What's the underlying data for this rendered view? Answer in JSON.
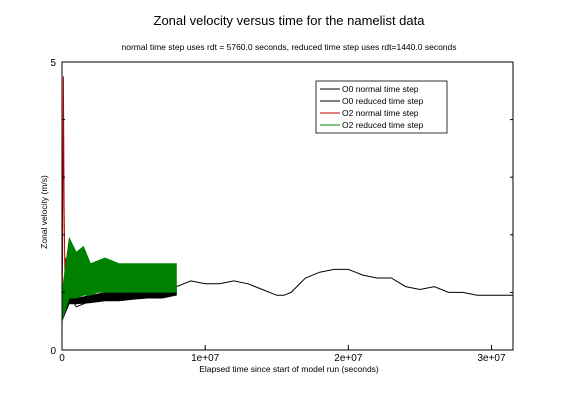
{
  "chart_data": {
    "type": "line",
    "title": "Zonal velocity versus time for the namelist data",
    "subtitle": "normal time step uses rdt = 5760.0 seconds, reduced time step uses rdt=1440.0 seconds",
    "xlabel": "Elapsed time since start of model run (seconds)",
    "ylabel": "Zonal velocity  (m/s)",
    "xlim": [
      0,
      31500000
    ],
    "ylim": [
      0,
      5
    ],
    "x_ticks": [
      0,
      10000000,
      20000000,
      30000000
    ],
    "x_tick_labels": [
      "0",
      "1e+07",
      "2e+07",
      "3e+07"
    ],
    "y_ticks": [
      0,
      5
    ],
    "y_tick_labels": [
      "0",
      "5"
    ],
    "grid": false,
    "legend_position": "top-right",
    "series": [
      {
        "name": "O0 normal time step",
        "color": "#000000",
        "band": false,
        "x": [
          0,
          500000,
          1000000,
          1500000,
          2000000,
          2500000,
          3000000,
          3500000,
          4000000,
          5000000,
          6000000,
          7000000,
          8000000,
          9000000,
          10000000,
          11000000,
          12000000,
          13000000,
          14000000,
          15000000,
          15500000,
          16000000,
          17000000,
          18000000,
          19000000,
          20000000,
          20500000,
          21000000,
          22000000,
          23000000,
          24000000,
          25000000,
          26000000,
          27000000,
          28000000,
          29000000,
          30000000,
          31000000,
          31500000
        ],
        "y": [
          0.65,
          0.95,
          0.75,
          0.8,
          0.85,
          0.9,
          0.95,
          0.95,
          0.98,
          1.0,
          1.0,
          1.05,
          1.1,
          1.2,
          1.15,
          1.15,
          1.2,
          1.15,
          1.05,
          0.95,
          0.95,
          1.0,
          1.25,
          1.35,
          1.4,
          1.4,
          1.35,
          1.3,
          1.25,
          1.25,
          1.1,
          1.05,
          1.1,
          1.0,
          1.0,
          0.95,
          0.95,
          0.95,
          0.95
        ]
      },
      {
        "name": "O0 reduced time step",
        "color": "#000000",
        "band": true,
        "x": [
          0,
          500000,
          1000000,
          2000000,
          3000000,
          4000000,
          5000000,
          6000000,
          7000000,
          8000000
        ],
        "y_low": [
          0.5,
          0.8,
          0.8,
          0.82,
          0.85,
          0.85,
          0.88,
          0.9,
          0.9,
          0.95
        ],
        "y_high": [
          0.7,
          1.0,
          0.9,
          0.95,
          1.0,
          1.0,
          1.0,
          1.0,
          1.05,
          1.05
        ]
      },
      {
        "name": "O2 normal time step",
        "color": "#c00000",
        "band": false,
        "x": [
          0,
          50000,
          100000,
          150000,
          200000,
          250000,
          300000,
          400000,
          500000
        ],
        "y": [
          0.3,
          2.0,
          4.75,
          2.5,
          1.3,
          1.6,
          1.0,
          1.3,
          1.05
        ]
      },
      {
        "name": "O2 reduced time step",
        "color": "#008000",
        "band": true,
        "x": [
          0,
          500000,
          1000000,
          1500000,
          2000000,
          2500000,
          3000000,
          4000000,
          5000000,
          6000000,
          7000000,
          8000000
        ],
        "y_low": [
          0.5,
          0.9,
          0.9,
          0.95,
          0.95,
          1.0,
          1.0,
          1.0,
          1.0,
          1.0,
          1.0,
          1.0
        ],
        "y_high": [
          1.0,
          1.95,
          1.7,
          1.8,
          1.5,
          1.55,
          1.6,
          1.5,
          1.5,
          1.5,
          1.5,
          1.5
        ]
      }
    ]
  }
}
